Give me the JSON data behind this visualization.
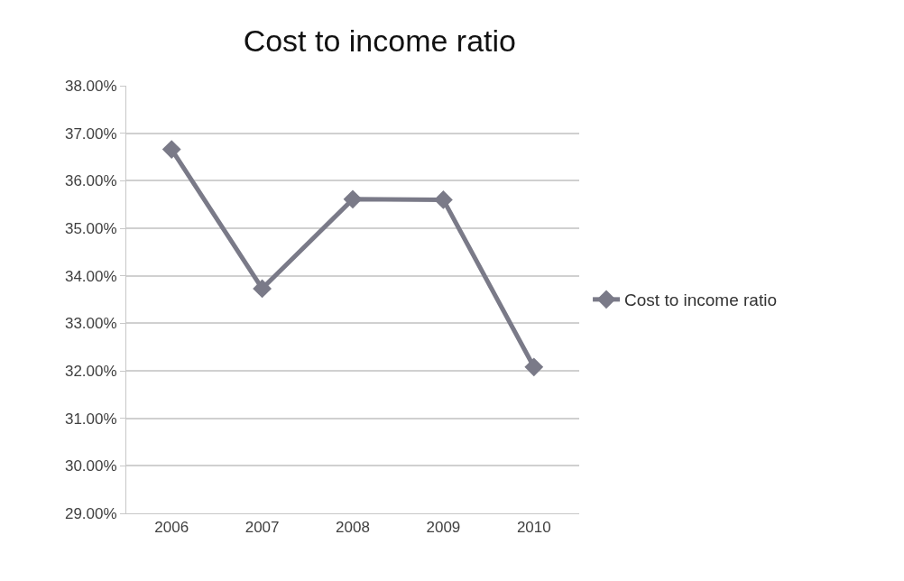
{
  "chart_data": {
    "type": "line",
    "title": "Cost to income ratio",
    "categories": [
      "2006",
      "2007",
      "2008",
      "2009",
      "2010"
    ],
    "series": [
      {
        "name": "Cost to income ratio",
        "color": "#7a7a88",
        "values": [
          36.66,
          33.73,
          35.61,
          35.6,
          32.08
        ]
      }
    ],
    "ylim": [
      29,
      38
    ],
    "yticks": [
      {
        "value": 29,
        "label": "29.00%"
      },
      {
        "value": 30,
        "label": "30.00%"
      },
      {
        "value": 31,
        "label": "31.00%"
      },
      {
        "value": 32,
        "label": "32.00%"
      },
      {
        "value": 33,
        "label": "33.00%"
      },
      {
        "value": 34,
        "label": "34.00%"
      },
      {
        "value": 35,
        "label": "35.00%"
      },
      {
        "value": 36,
        "label": "36.00%"
      },
      {
        "value": 37,
        "label": "37.00%"
      },
      {
        "value": 38,
        "label": "38.00%"
      }
    ],
    "grid": "y",
    "legend": "right",
    "marker": "diamond",
    "line_style": "solid"
  }
}
